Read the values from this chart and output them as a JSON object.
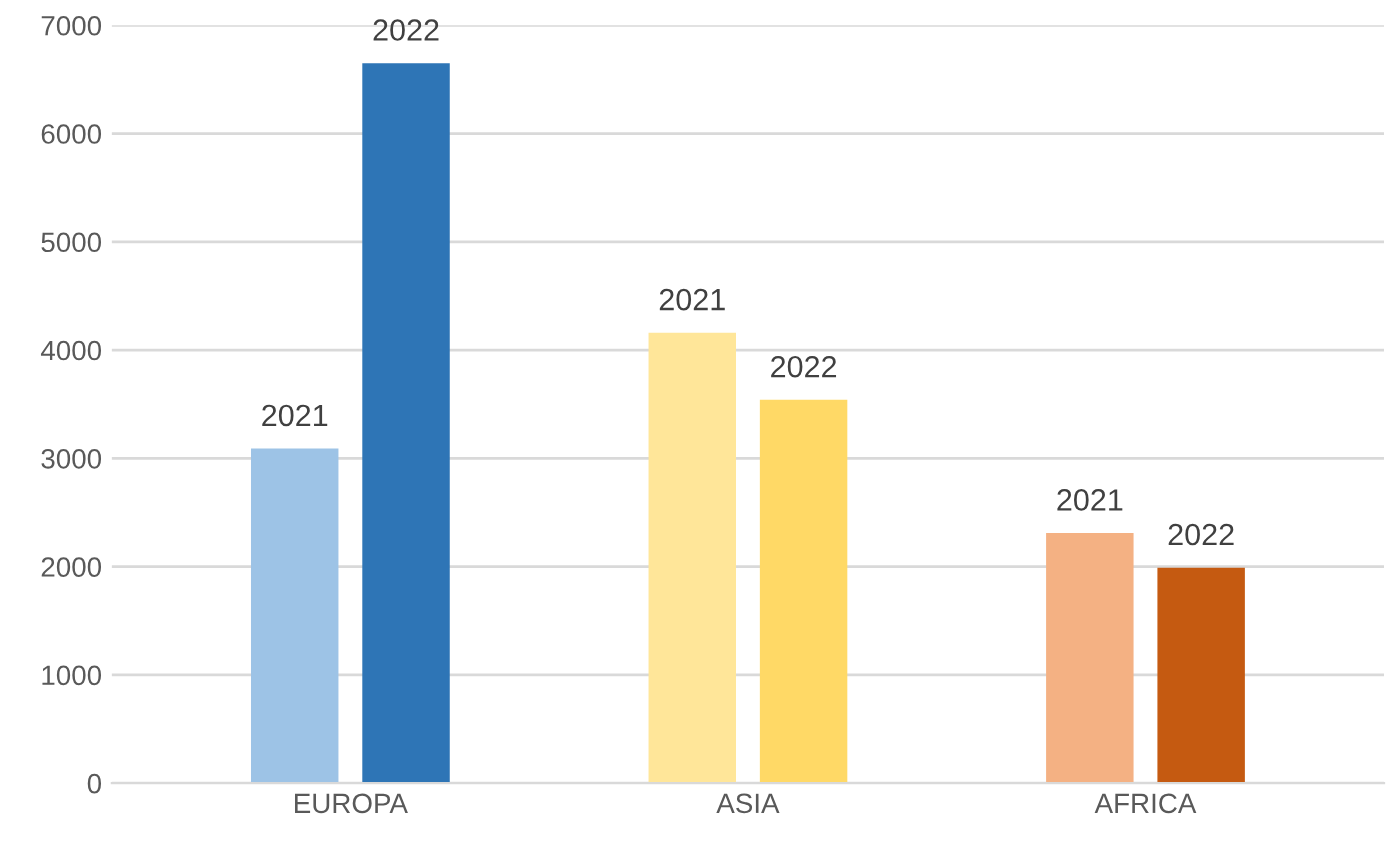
{
  "chart_data": {
    "type": "bar",
    "categories": [
      "EUROPA",
      "ASIA",
      "AFRICA"
    ],
    "series": [
      {
        "name": "2021",
        "colors": [
          "#9dc3e6",
          "#ffe699",
          "#f4b183"
        ],
        "values": [
          3090,
          4160,
          2310
        ]
      },
      {
        "name": "2022",
        "colors": [
          "#2e75b6",
          "#ffd966",
          "#c55a11"
        ],
        "values": [
          6650,
          3540,
          1990
        ]
      }
    ],
    "ylim": [
      0,
      7000
    ],
    "yticks": [
      0,
      1000,
      2000,
      3000,
      4000,
      5000,
      6000,
      7000
    ],
    "grid": "y",
    "legend": false
  }
}
